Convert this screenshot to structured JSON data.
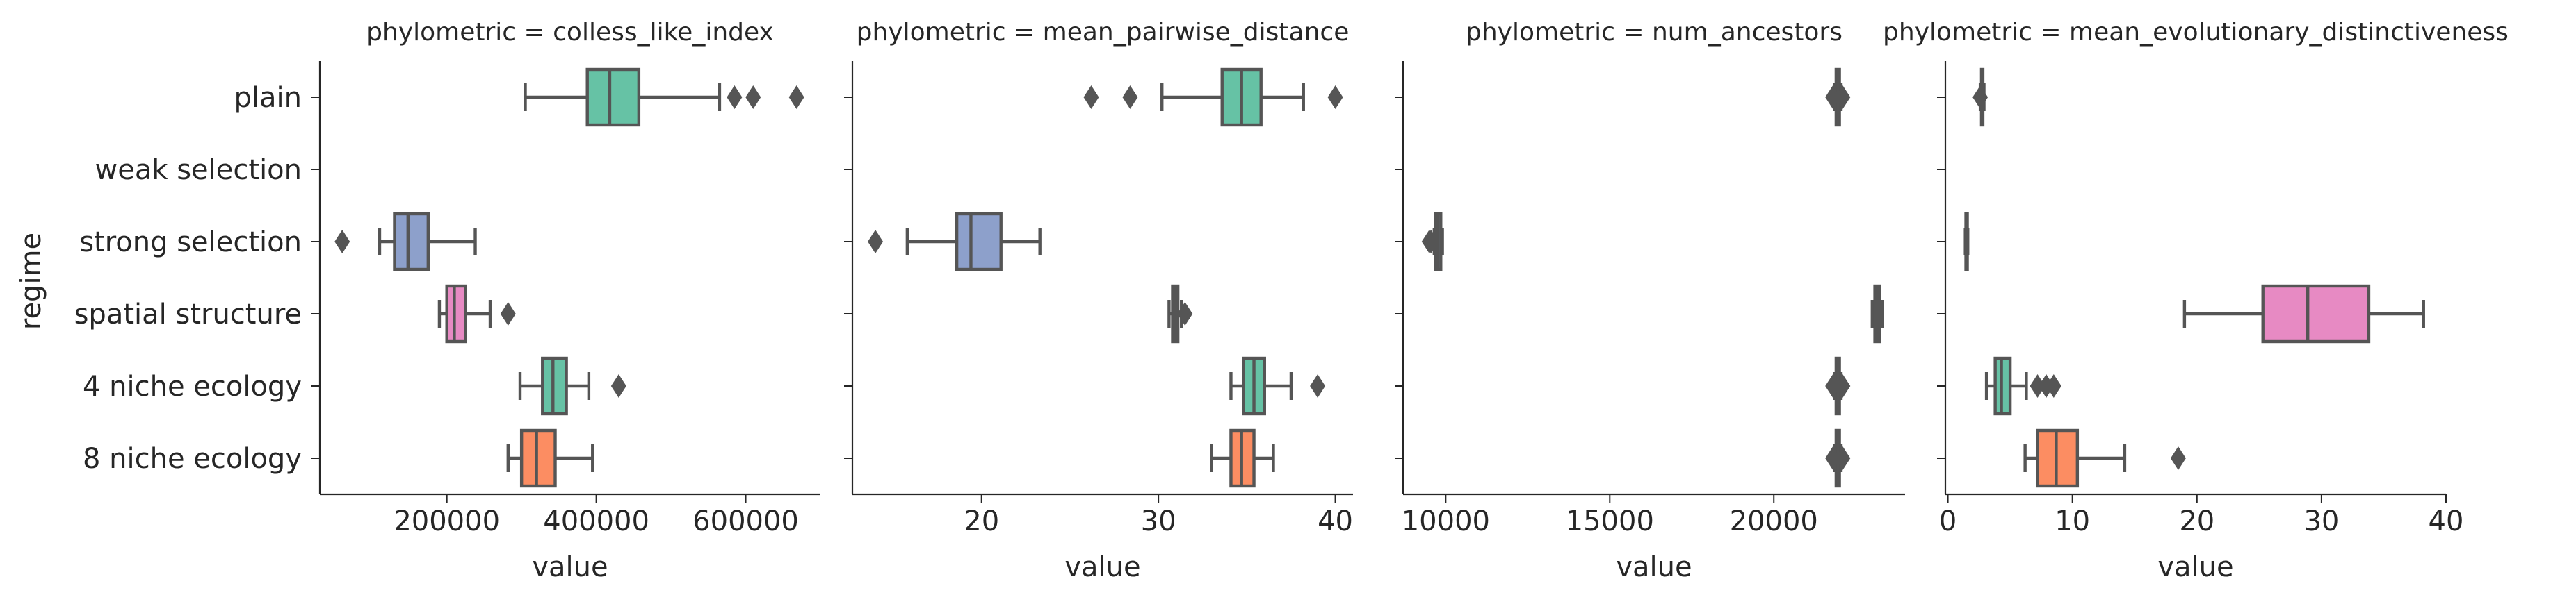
{
  "chart_data": {
    "type": "boxplot",
    "ylabel": "regime",
    "categories": [
      "plain",
      "weak selection",
      "strong selection",
      "spatial structure",
      "4 niche ecology",
      "8 niche ecology"
    ],
    "colors": {
      "plain": "#66c2a5",
      "weak selection": "#fc8d62",
      "strong selection": "#8da0cb",
      "spatial structure": "#e78ac3",
      "4 niche ecology": "#66c2a5",
      "8 niche ecology": "#fc8d62",
      "line": "#555555"
    },
    "panels": [
      {
        "title": "phylometric = colless_like_index",
        "xlabel": "value",
        "xlim": [
          30000,
          700000
        ],
        "xticks": [
          200000,
          400000,
          600000
        ],
        "xtick_labels": [
          "200000",
          "400000",
          "600000"
        ],
        "boxes": [
          {
            "category": "plain",
            "whislo": 305000,
            "q1": 388000,
            "med": 418000,
            "q3": 457000,
            "whishi": 565000,
            "fliers": [
              585000,
              610000,
              668000
            ]
          },
          {
            "category": "strong selection",
            "whislo": 110000,
            "q1": 130000,
            "med": 148000,
            "q3": 175000,
            "whishi": 238000,
            "fliers": [
              60000
            ]
          },
          {
            "category": "spatial structure",
            "whislo": 190000,
            "q1": 200000,
            "med": 210000,
            "q3": 225000,
            "whishi": 258000,
            "fliers": [
              282000
            ]
          },
          {
            "category": "4 niche ecology",
            "whislo": 298000,
            "q1": 328000,
            "med": 342000,
            "q3": 360000,
            "whishi": 390000,
            "fliers": [
              430000
            ]
          },
          {
            "category": "8 niche ecology",
            "whislo": 282000,
            "q1": 300000,
            "med": 320000,
            "q3": 345000,
            "whishi": 395000,
            "fliers": []
          }
        ]
      },
      {
        "title": "phylometric = mean_pairwise_distance",
        "xlabel": "value",
        "xlim": [
          12.7,
          41.0
        ],
        "xticks": [
          20,
          30,
          40
        ],
        "xtick_labels": [
          "20",
          "30",
          "40"
        ],
        "boxes": [
          {
            "category": "plain",
            "whislo": 30.2,
            "q1": 33.6,
            "med": 34.7,
            "q3": 35.8,
            "whishi": 38.2,
            "fliers": [
              26.2,
              28.4,
              40.0
            ]
          },
          {
            "category": "strong selection",
            "whislo": 15.8,
            "q1": 18.6,
            "med": 19.4,
            "q3": 21.1,
            "whishi": 23.3,
            "fliers": [
              14.0
            ]
          },
          {
            "category": "spatial structure",
            "whislo": 30.6,
            "q1": 30.8,
            "med": 30.9,
            "q3": 31.1,
            "whishi": 31.3,
            "fliers": [
              31.5
            ]
          },
          {
            "category": "4 niche ecology",
            "whislo": 34.1,
            "q1": 34.8,
            "med": 35.4,
            "q3": 36.0,
            "whishi": 37.5,
            "fliers": [
              39.0
            ]
          },
          {
            "category": "8 niche ecology",
            "whislo": 33.0,
            "q1": 34.1,
            "med": 34.7,
            "q3": 35.4,
            "whishi": 36.5,
            "fliers": []
          }
        ]
      },
      {
        "title": "phylometric = num_ancestors",
        "xlabel": "value",
        "xlim": [
          8700,
          24000
        ],
        "xticks": [
          10000,
          15000,
          20000
        ],
        "xtick_labels": [
          "10000",
          "15000",
          "20000"
        ],
        "boxes": [
          {
            "category": "plain",
            "whislo": 21850,
            "q1": 21900,
            "med": 21950,
            "q3": 22000,
            "whishi": 22050,
            "fliers": [
              21800,
              22100
            ]
          },
          {
            "category": "strong selection",
            "whislo": 9650,
            "q1": 9700,
            "med": 9750,
            "q3": 9850,
            "whishi": 9900,
            "fliers": [
              9500,
              9550
            ]
          },
          {
            "category": "spatial structure",
            "whislo": 23000,
            "q1": 23080,
            "med": 23150,
            "q3": 23230,
            "whishi": 23300,
            "fliers": []
          },
          {
            "category": "4 niche ecology",
            "whislo": 21850,
            "q1": 21900,
            "med": 21950,
            "q3": 22000,
            "whishi": 22050,
            "fliers": [
              21800,
              22100
            ]
          },
          {
            "category": "8 niche ecology",
            "whislo": 21850,
            "q1": 21900,
            "med": 21950,
            "q3": 22000,
            "whishi": 22050,
            "fliers": [
              21800,
              22100
            ]
          }
        ]
      },
      {
        "title": "phylometric = mean_evolutionary_distinctiveness",
        "xlabel": "value",
        "xlim": [
          -0.2,
          40.0
        ],
        "xticks": [
          0,
          10,
          20,
          30,
          40
        ],
        "xtick_labels": [
          "0",
          "10",
          "20",
          "30",
          "40"
        ],
        "boxes": [
          {
            "category": "plain",
            "whislo": 2.6,
            "q1": 2.7,
            "med": 2.75,
            "q3": 2.8,
            "whishi": 2.9,
            "fliers": [
              2.6
            ]
          },
          {
            "category": "strong selection",
            "whislo": 1.4,
            "q1": 1.45,
            "med": 1.5,
            "q3": 1.55,
            "whishi": 1.6,
            "fliers": []
          },
          {
            "category": "spatial structure",
            "whislo": 19.0,
            "q1": 25.3,
            "med": 28.9,
            "q3": 33.8,
            "whishi": 38.2,
            "fliers": []
          },
          {
            "category": "4 niche ecology",
            "whislo": 3.1,
            "q1": 3.8,
            "med": 4.3,
            "q3": 5.0,
            "whishi": 6.3,
            "fliers": [
              7.2,
              7.9,
              8.5
            ]
          },
          {
            "category": "8 niche ecology",
            "whislo": 6.2,
            "q1": 7.2,
            "med": 8.7,
            "q3": 10.4,
            "whishi": 14.2,
            "fliers": [
              18.5
            ]
          }
        ]
      }
    ]
  }
}
